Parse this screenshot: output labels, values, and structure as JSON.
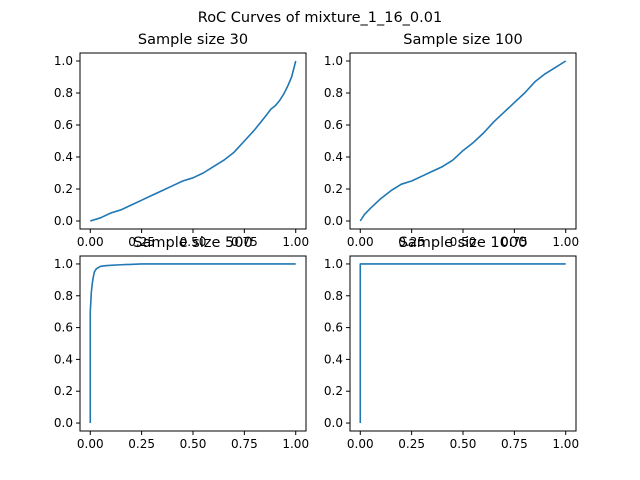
{
  "figure": {
    "title": "RoC Curves of mixture_1_16_0.01"
  },
  "chart_data": [
    {
      "type": "line",
      "title": "Sample size 30",
      "xlabel": "",
      "ylabel": "",
      "xlim": [
        -0.05,
        1.05
      ],
      "ylim": [
        -0.05,
        1.05
      ],
      "xticks": [
        "0.00",
        "0.25",
        "0.50",
        "0.75",
        "1.00"
      ],
      "yticks": [
        "0.0",
        "0.2",
        "0.4",
        "0.6",
        "0.8",
        "1.0"
      ],
      "grid": false,
      "color": "#1f77b4",
      "x": [
        0.0,
        0.05,
        0.1,
        0.15,
        0.2,
        0.25,
        0.3,
        0.35,
        0.4,
        0.45,
        0.5,
        0.55,
        0.6,
        0.65,
        0.7,
        0.75,
        0.8,
        0.85,
        0.88,
        0.9,
        0.92,
        0.94,
        0.96,
        0.98,
        0.99,
        1.0
      ],
      "y": [
        0.0,
        0.02,
        0.05,
        0.07,
        0.1,
        0.13,
        0.16,
        0.19,
        0.22,
        0.25,
        0.27,
        0.3,
        0.34,
        0.38,
        0.43,
        0.5,
        0.57,
        0.65,
        0.7,
        0.72,
        0.75,
        0.79,
        0.84,
        0.9,
        0.95,
        1.0
      ]
    },
    {
      "type": "line",
      "title": "Sample size 100",
      "xlabel": "",
      "ylabel": "",
      "xlim": [
        -0.05,
        1.05
      ],
      "ylim": [
        -0.05,
        1.05
      ],
      "xticks": [
        "0.00",
        "0.25",
        "0.50",
        "0.75",
        "1.00"
      ],
      "yticks": [
        "0.0",
        "0.2",
        "0.4",
        "0.6",
        "0.8",
        "1.0"
      ],
      "grid": false,
      "color": "#1f77b4",
      "x": [
        0.0,
        0.02,
        0.05,
        0.1,
        0.15,
        0.2,
        0.25,
        0.3,
        0.35,
        0.4,
        0.45,
        0.5,
        0.55,
        0.6,
        0.65,
        0.7,
        0.75,
        0.8,
        0.85,
        0.9,
        0.95,
        1.0
      ],
      "y": [
        0.0,
        0.04,
        0.08,
        0.14,
        0.19,
        0.23,
        0.25,
        0.28,
        0.31,
        0.34,
        0.38,
        0.44,
        0.49,
        0.55,
        0.62,
        0.68,
        0.74,
        0.8,
        0.87,
        0.92,
        0.96,
        1.0
      ]
    },
    {
      "type": "line",
      "title": "Sample size 500",
      "xlabel": "",
      "ylabel": "",
      "xlim": [
        -0.05,
        1.05
      ],
      "ylim": [
        -0.05,
        1.05
      ],
      "xticks": [
        "0.00",
        "0.25",
        "0.50",
        "0.75",
        "1.00"
      ],
      "yticks": [
        "0.0",
        "0.2",
        "0.4",
        "0.6",
        "0.8",
        "1.0"
      ],
      "grid": false,
      "color": "#1f77b4",
      "x": [
        0.0,
        0.0,
        0.005,
        0.01,
        0.015,
        0.02,
        0.03,
        0.05,
        0.08,
        0.15,
        0.25,
        0.5,
        1.0
      ],
      "y": [
        0.0,
        0.7,
        0.82,
        0.88,
        0.92,
        0.95,
        0.97,
        0.985,
        0.99,
        0.995,
        1.0,
        1.0,
        1.0
      ]
    },
    {
      "type": "line",
      "title": "Sample size 1000",
      "xlabel": "",
      "ylabel": "",
      "xlim": [
        -0.05,
        1.05
      ],
      "ylim": [
        -0.05,
        1.05
      ],
      "xticks": [
        "0.00",
        "0.25",
        "0.50",
        "0.75",
        "1.00"
      ],
      "yticks": [
        "0.0",
        "0.2",
        "0.4",
        "0.6",
        "0.8",
        "1.0"
      ],
      "grid": false,
      "color": "#1f77b4",
      "x": [
        0.0,
        0.0,
        0.01,
        1.0
      ],
      "y": [
        0.0,
        1.0,
        1.0,
        1.0
      ]
    }
  ]
}
